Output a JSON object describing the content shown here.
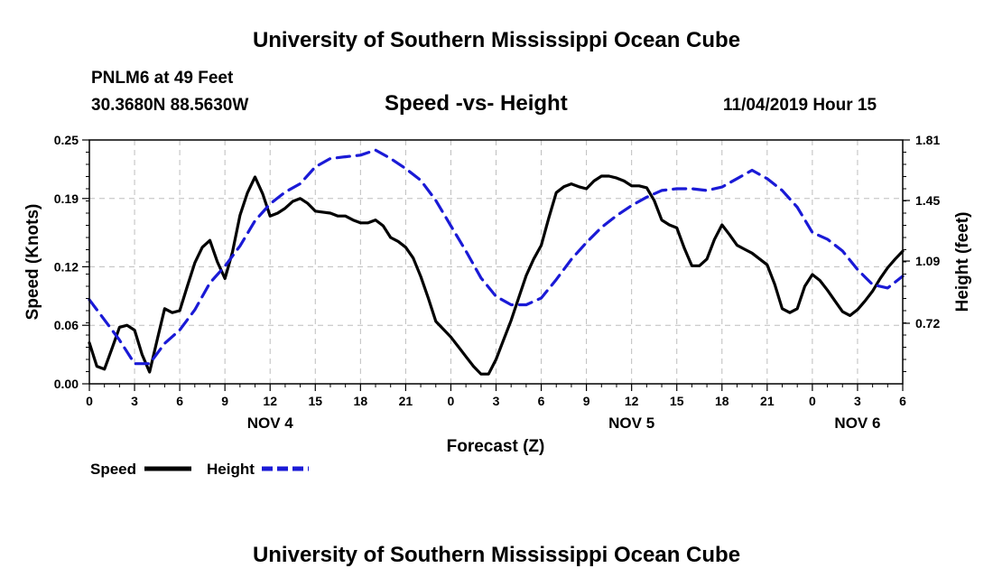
{
  "header": {
    "title": "University of Southern Mississippi Ocean Cube",
    "station": "PNLM6 at 49 Feet",
    "coords": "30.3680N 88.5630W",
    "subtitle": "Speed -vs- Height",
    "datetime": "11/04/2019 Hour 15"
  },
  "footer": {
    "title": "University of Southern Mississippi Ocean Cube"
  },
  "chart_data": {
    "type": "line",
    "title": "Speed -vs- Height",
    "xlabel": "Forecast (Z)",
    "ylabel": "Speed (Knots)",
    "y2label": "Height (feet)",
    "x_range": [
      0,
      54
    ],
    "ylim": [
      0,
      0.25
    ],
    "y2lim": [
      0.36,
      1.81
    ],
    "x_tick_positions": [
      0,
      3,
      6,
      9,
      12,
      15,
      18,
      21,
      24,
      27,
      30,
      33,
      36,
      39,
      42,
      45,
      48,
      51,
      54
    ],
    "x_tick_labels": [
      "0",
      "3",
      "6",
      "9",
      "12",
      "15",
      "18",
      "21",
      "0",
      "3",
      "6",
      "9",
      "12",
      "15",
      "18",
      "21",
      "0",
      "3",
      "6"
    ],
    "y_ticks": [
      0.0,
      0.06,
      0.12,
      0.19,
      0.25
    ],
    "y_tick_labels": [
      "0.00",
      "0.06",
      "0.12",
      "0.19",
      "0.25"
    ],
    "y2_ticks": [
      0.72,
      1.09,
      1.45,
      1.81
    ],
    "y2_tick_labels": [
      "0.72",
      "1.09",
      "1.45",
      "1.81"
    ],
    "day_labels": [
      {
        "x": 12,
        "label": "NOV 4"
      },
      {
        "x": 36,
        "label": "NOV 5"
      },
      {
        "x": 51,
        "label": "NOV 6"
      }
    ],
    "grid": true,
    "legend_position": "bottom-left",
    "series": [
      {
        "name": "Speed",
        "axis": "left",
        "color": "#000000",
        "style": "solid",
        "x": [
          0,
          0.5,
          1,
          1.5,
          2,
          2.5,
          3,
          3.5,
          4,
          4.5,
          5,
          5.5,
          6,
          6.5,
          7,
          7.5,
          8,
          8.5,
          9,
          9.5,
          10,
          10.5,
          11,
          11.5,
          12,
          12.5,
          13,
          13.5,
          14,
          14.5,
          15,
          15.5,
          16,
          16.5,
          17,
          17.5,
          18,
          18.5,
          19,
          19.5,
          20,
          20.5,
          21,
          21.5,
          22,
          22.5,
          23,
          23.5,
          24,
          24.5,
          25,
          25.5,
          26,
          26.5,
          27,
          27.5,
          28,
          28.5,
          29,
          29.5,
          30,
          30.5,
          31,
          31.5,
          32,
          32.5,
          33,
          33.5,
          34,
          34.5,
          35,
          35.5,
          36,
          36.5,
          37,
          37.5,
          38,
          38.5,
          39,
          39.5,
          40,
          40.5,
          41,
          41.5,
          42,
          42.5,
          43,
          43.5,
          44,
          44.5,
          45,
          45.5,
          46,
          46.5,
          47,
          47.5,
          48,
          48.5,
          49,
          49.5,
          50,
          50.5,
          51,
          51.5,
          52,
          52.5,
          53,
          53.5,
          54
        ],
        "values": [
          0.042,
          0.018,
          0.015,
          0.036,
          0.058,
          0.06,
          0.055,
          0.03,
          0.012,
          0.045,
          0.077,
          0.073,
          0.075,
          0.1,
          0.124,
          0.14,
          0.147,
          0.125,
          0.108,
          0.135,
          0.173,
          0.196,
          0.212,
          0.195,
          0.172,
          0.175,
          0.18,
          0.187,
          0.19,
          0.185,
          0.177,
          0.176,
          0.175,
          0.172,
          0.172,
          0.168,
          0.165,
          0.165,
          0.168,
          0.162,
          0.15,
          0.146,
          0.14,
          0.129,
          0.11,
          0.088,
          0.064,
          0.056,
          0.048,
          0.038,
          0.028,
          0.018,
          0.01,
          0.01,
          0.025,
          0.045,
          0.065,
          0.088,
          0.111,
          0.128,
          0.142,
          0.17,
          0.196,
          0.202,
          0.205,
          0.202,
          0.2,
          0.208,
          0.213,
          0.213,
          0.211,
          0.208,
          0.203,
          0.203,
          0.201,
          0.188,
          0.168,
          0.163,
          0.16,
          0.139,
          0.121,
          0.121,
          0.128,
          0.148,
          0.163,
          0.153,
          0.142,
          0.138,
          0.134,
          0.128,
          0.122,
          0.102,
          0.077,
          0.073,
          0.077,
          0.1,
          0.112,
          0.106,
          0.096,
          0.085,
          0.074,
          0.07,
          0.076,
          0.085,
          0.095,
          0.108,
          0.119,
          0.128,
          0.136
        ]
      },
      {
        "name": "Height",
        "axis": "right",
        "color": "#1a1ad6",
        "style": "dashed",
        "x": [
          0,
          1,
          2,
          3,
          4,
          5,
          6,
          7,
          8,
          9,
          10,
          11,
          12,
          13,
          14,
          15,
          16,
          17,
          18,
          19,
          20,
          21,
          22,
          23,
          24,
          25,
          26,
          27,
          28,
          29,
          30,
          31,
          32,
          33,
          34,
          35,
          36,
          37,
          38,
          39,
          40,
          41,
          42,
          43,
          44,
          45,
          46,
          47,
          48,
          49,
          50,
          51,
          52,
          53,
          54
        ],
        "values": [
          0.86,
          0.74,
          0.62,
          0.48,
          0.48,
          0.6,
          0.68,
          0.8,
          0.96,
          1.06,
          1.18,
          1.33,
          1.43,
          1.5,
          1.55,
          1.65,
          1.7,
          1.71,
          1.72,
          1.75,
          1.7,
          1.64,
          1.57,
          1.45,
          1.3,
          1.15,
          0.99,
          0.88,
          0.83,
          0.83,
          0.87,
          0.98,
          1.1,
          1.2,
          1.29,
          1.36,
          1.42,
          1.47,
          1.51,
          1.52,
          1.52,
          1.51,
          1.53,
          1.58,
          1.63,
          1.58,
          1.51,
          1.41,
          1.26,
          1.22,
          1.15,
          1.04,
          0.95,
          0.93,
          1.0
        ]
      }
    ]
  }
}
